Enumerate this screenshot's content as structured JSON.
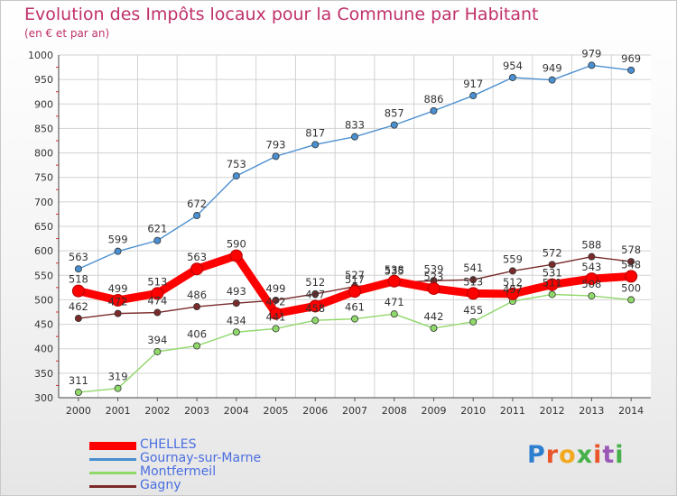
{
  "title": "Evolution des Impôts locaux pour la Commune par Habitant",
  "subtitle": "(en € et par an)",
  "logo": {
    "text": "Proxiti",
    "letter_colors": [
      "#2d7fd0",
      "#e8562a",
      "#f2a81f",
      "#47b04a",
      "#e8562a",
      "#9b59b6",
      "#47b04a"
    ]
  },
  "chart_data": {
    "type": "line",
    "x": [
      "2000",
      "2001",
      "2002",
      "2003",
      "2004",
      "2005",
      "2006",
      "2007",
      "2008",
      "2009",
      "2010",
      "2011",
      "2012",
      "2013",
      "2014"
    ],
    "ylim": [
      300,
      1000
    ],
    "yticks": [
      "300",
      "350",
      "400",
      "450",
      "500",
      "550",
      "600",
      "650",
      "700",
      "750",
      "800",
      "850",
      "900",
      "950",
      "1000"
    ],
    "grid": true,
    "legend_position": "bottom-left",
    "series": [
      {
        "name": "CHELLES",
        "color": "#ff0000",
        "highlight": true,
        "values": [
          518,
          499,
          513,
          563,
          590,
          472,
          487,
          517,
          538,
          523,
          513,
          512,
          531,
          543,
          548
        ],
        "labels": [
          "518",
          "499",
          "513",
          "563",
          "590",
          "472",
          "487",
          "517",
          "538",
          "523",
          "513",
          "512",
          "531",
          "543",
          "548"
        ]
      },
      {
        "name": "Gournay-sur-Marne",
        "color": "#4a8fd0",
        "highlight": false,
        "values": [
          563,
          599,
          621,
          672,
          753,
          793,
          817,
          833,
          857,
          886,
          917,
          954,
          949,
          979,
          969
        ],
        "labels": [
          "563",
          "599",
          "621",
          "672",
          "753",
          "793",
          "817",
          "833",
          "857",
          "886",
          "917",
          "954",
          "949",
          "979",
          "969"
        ]
      },
      {
        "name": "Montfermeil",
        "color": "#8fd86a",
        "highlight": false,
        "values": [
          311,
          319,
          394,
          406,
          434,
          441,
          458,
          461,
          471,
          442,
          455,
          497,
          511,
          508,
          500
        ],
        "labels": [
          "311",
          "319",
          "394",
          "406",
          "434",
          "441",
          "458",
          "461",
          "471",
          "442",
          "455",
          "497",
          "511",
          "508",
          "500"
        ]
      },
      {
        "name": "Gagny",
        "color": "#7a2a2a",
        "highlight": false,
        "values": [
          462,
          472,
          474,
          486,
          493,
          499,
          512,
          527,
          535,
          539,
          541,
          559,
          572,
          588,
          578
        ],
        "labels": [
          "462",
          "472",
          "474",
          "486",
          "493",
          "499",
          "512",
          "527",
          "535",
          "539",
          "541",
          "559",
          "572",
          "588",
          "578"
        ]
      }
    ]
  }
}
